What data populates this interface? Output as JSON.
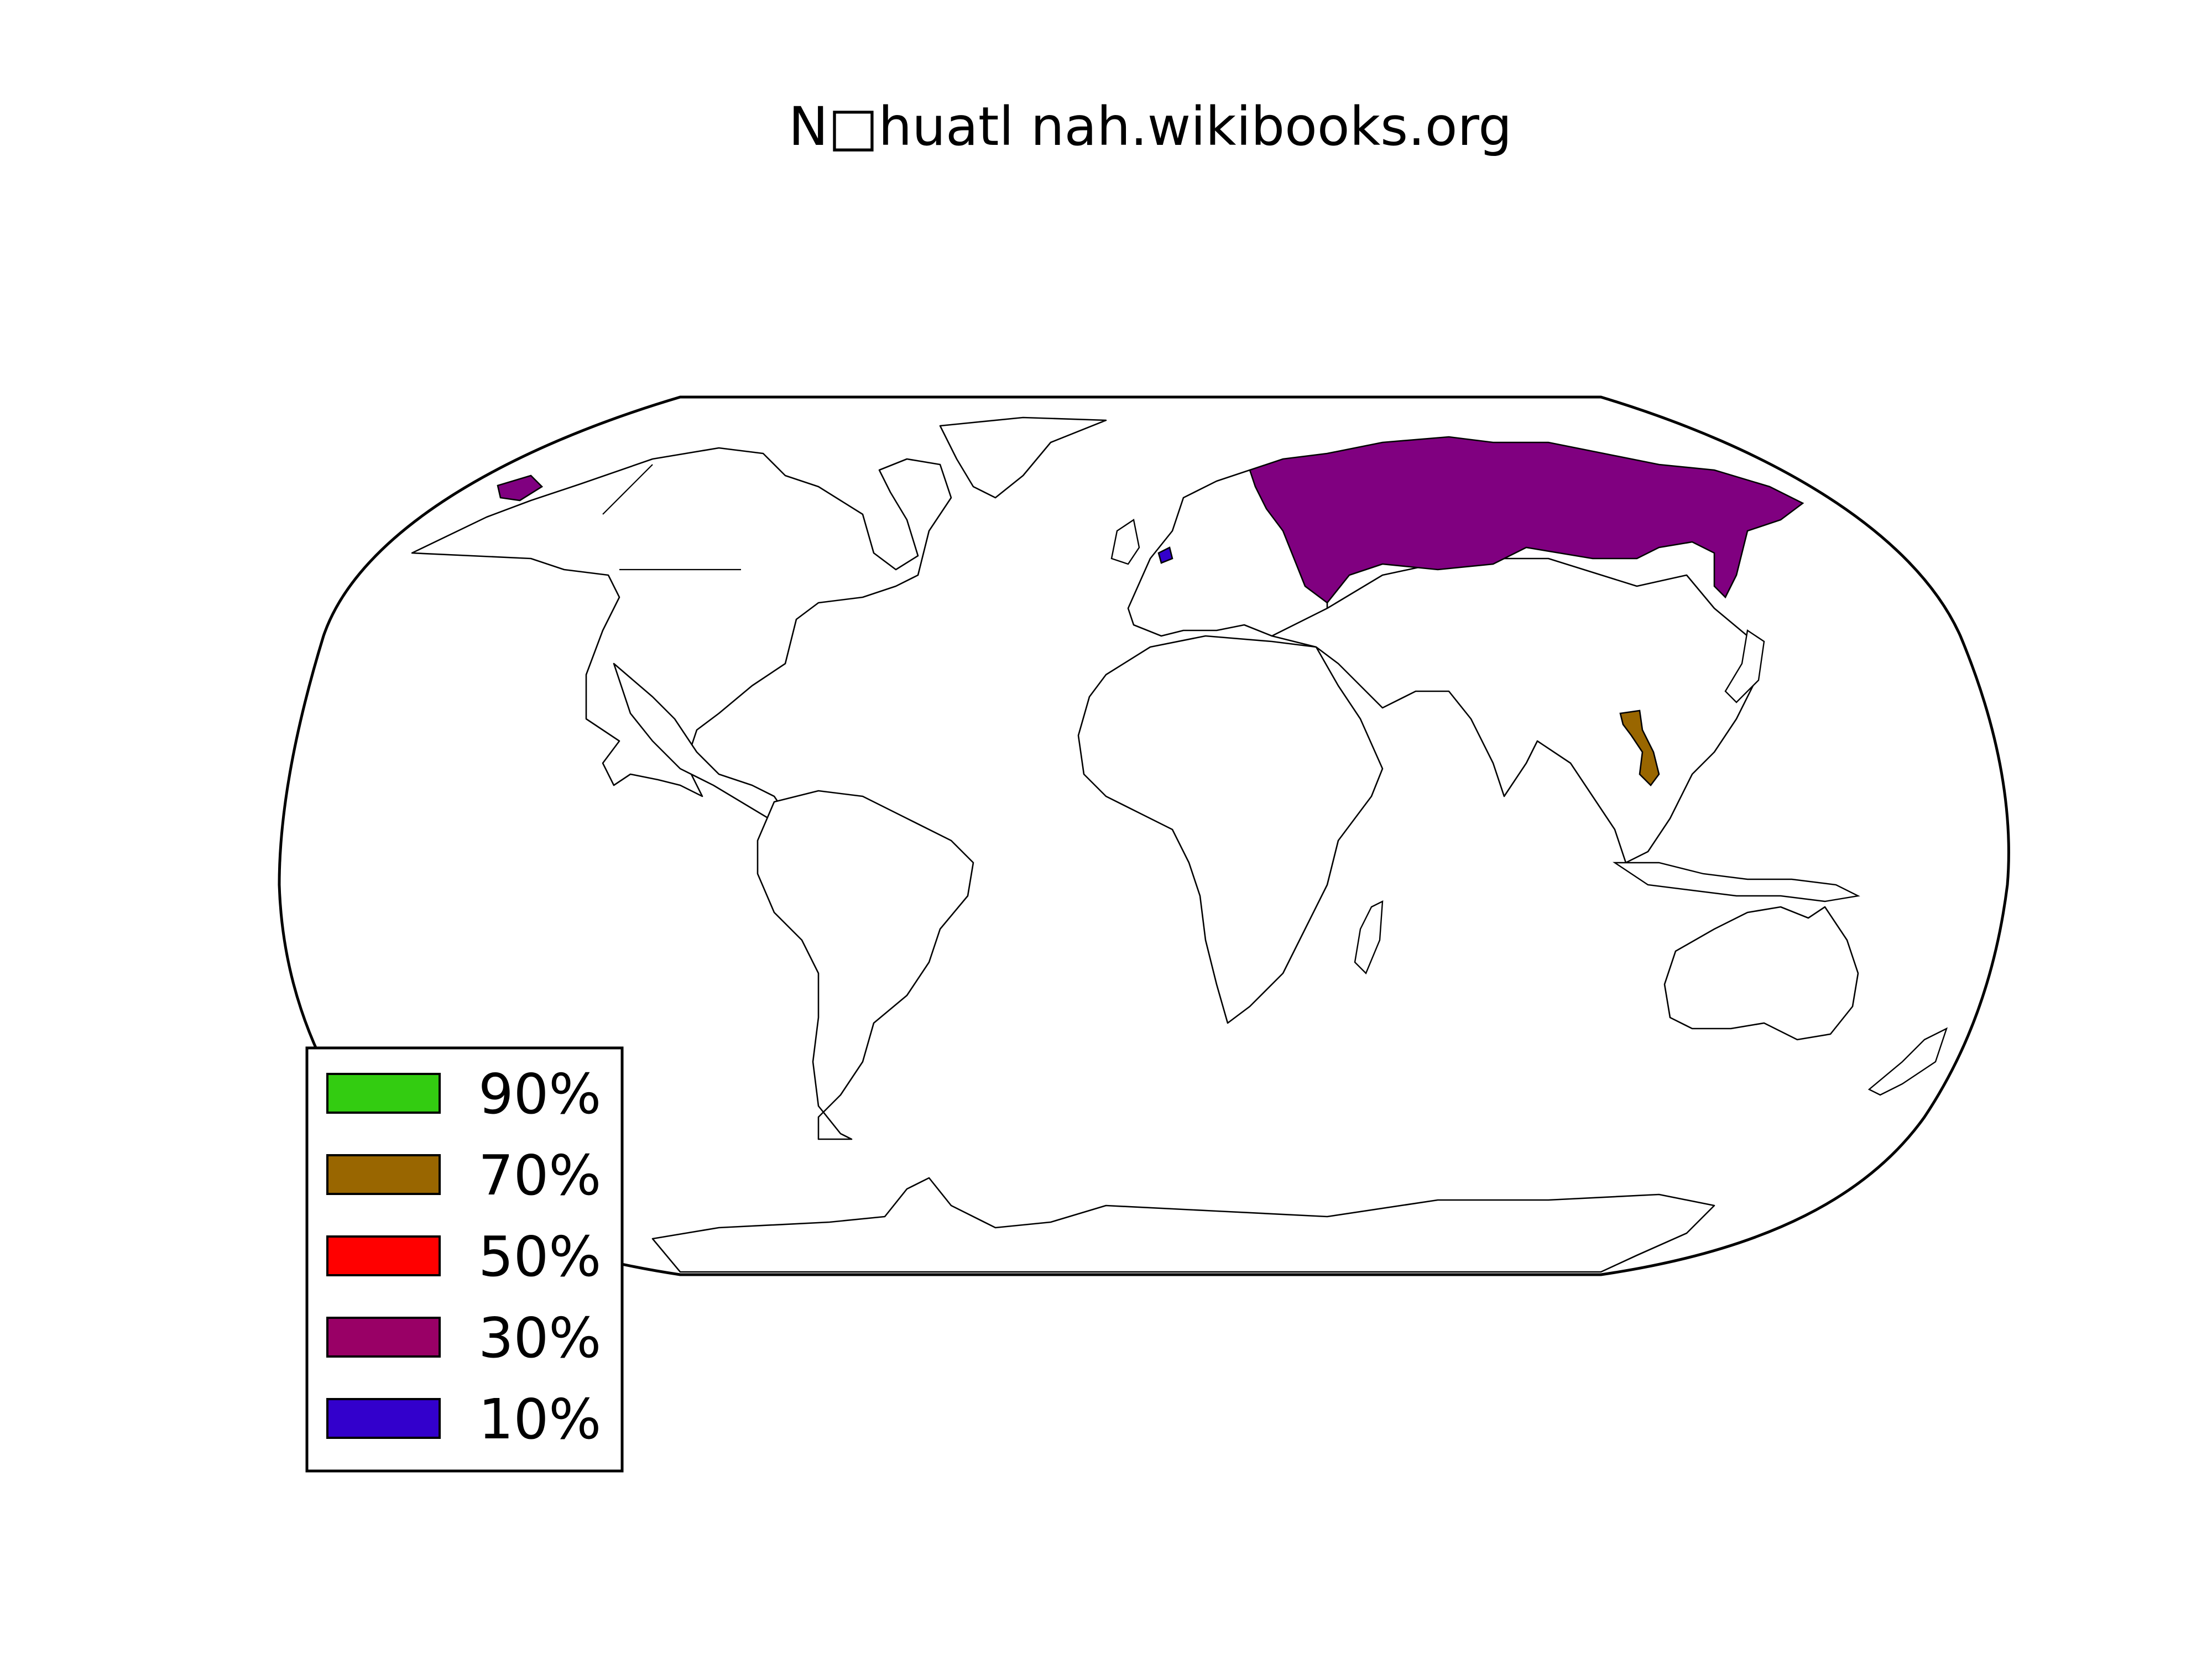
{
  "chart_data": {
    "type": "choropleth-map",
    "title": "N□huatl nah.wikibooks.org",
    "projection": "robinson",
    "legend": {
      "placement": "lower-left",
      "entries": [
        {
          "label": "90%",
          "color": "#33cc11"
        },
        {
          "label": "70%",
          "color": "#996600"
        },
        {
          "label": "50%",
          "color": "#ff0000"
        },
        {
          "label": "30%",
          "color": "#990066"
        },
        {
          "label": "10%",
          "color": "#3300cc"
        }
      ]
    },
    "highlighted_regions": [
      {
        "region": "russia",
        "color": "#800080"
      },
      {
        "region": "alaska-tip",
        "color": "#800080"
      },
      {
        "region": "vietnam",
        "color": "#996600"
      },
      {
        "region": "netherlands",
        "color": "#3300cc"
      }
    ]
  }
}
